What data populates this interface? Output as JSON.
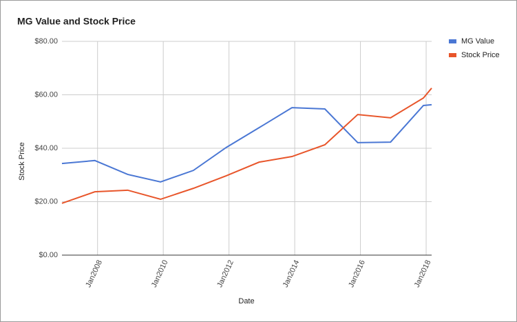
{
  "chart_data": {
    "type": "line",
    "title": "MG Value and Stock Price",
    "x_label": "Date",
    "y_label": "Stock Price",
    "x": [
      "2006-12",
      "2007-12",
      "2008-12",
      "2009-12",
      "2010-12",
      "2011-12",
      "2012-12",
      "2013-12",
      "2014-12",
      "2015-12",
      "2016-12",
      "2017-12",
      "2018-03"
    ],
    "series": [
      {
        "name": "MG Value",
        "color": "#4a77d4",
        "values": [
          34.3,
          35.4,
          30.2,
          27.4,
          31.7,
          40.3,
          47.7,
          55.2,
          54.7,
          42.1,
          42.3,
          56.0,
          56.3
        ]
      },
      {
        "name": "Stock Price",
        "color": "#e8552a",
        "values": [
          19.4,
          23.7,
          24.3,
          20.9,
          25.0,
          29.7,
          34.8,
          36.9,
          41.3,
          52.6,
          51.4,
          58.8,
          62.5
        ]
      }
    ],
    "xlim": [
      "2006-12",
      "2018-03"
    ],
    "xticks": [
      {
        "value": "2008-01",
        "label": "Jan2008"
      },
      {
        "value": "2010-01",
        "label": "Jan2010"
      },
      {
        "value": "2012-01",
        "label": "Jan2012"
      },
      {
        "value": "2014-01",
        "label": "Jan2014"
      },
      {
        "value": "2016-01",
        "label": "Jan2016"
      },
      {
        "value": "2018-01",
        "label": "Jan2018"
      }
    ],
    "ylim": [
      0,
      80
    ],
    "yticks": [
      {
        "value": 0,
        "label": "$0.00"
      },
      {
        "value": 20,
        "label": "$20.00"
      },
      {
        "value": 40,
        "label": "$40.00"
      },
      {
        "value": 60,
        "label": "$60.00"
      },
      {
        "value": 80,
        "label": "$80.00"
      }
    ],
    "grid": true,
    "legend": "right"
  }
}
